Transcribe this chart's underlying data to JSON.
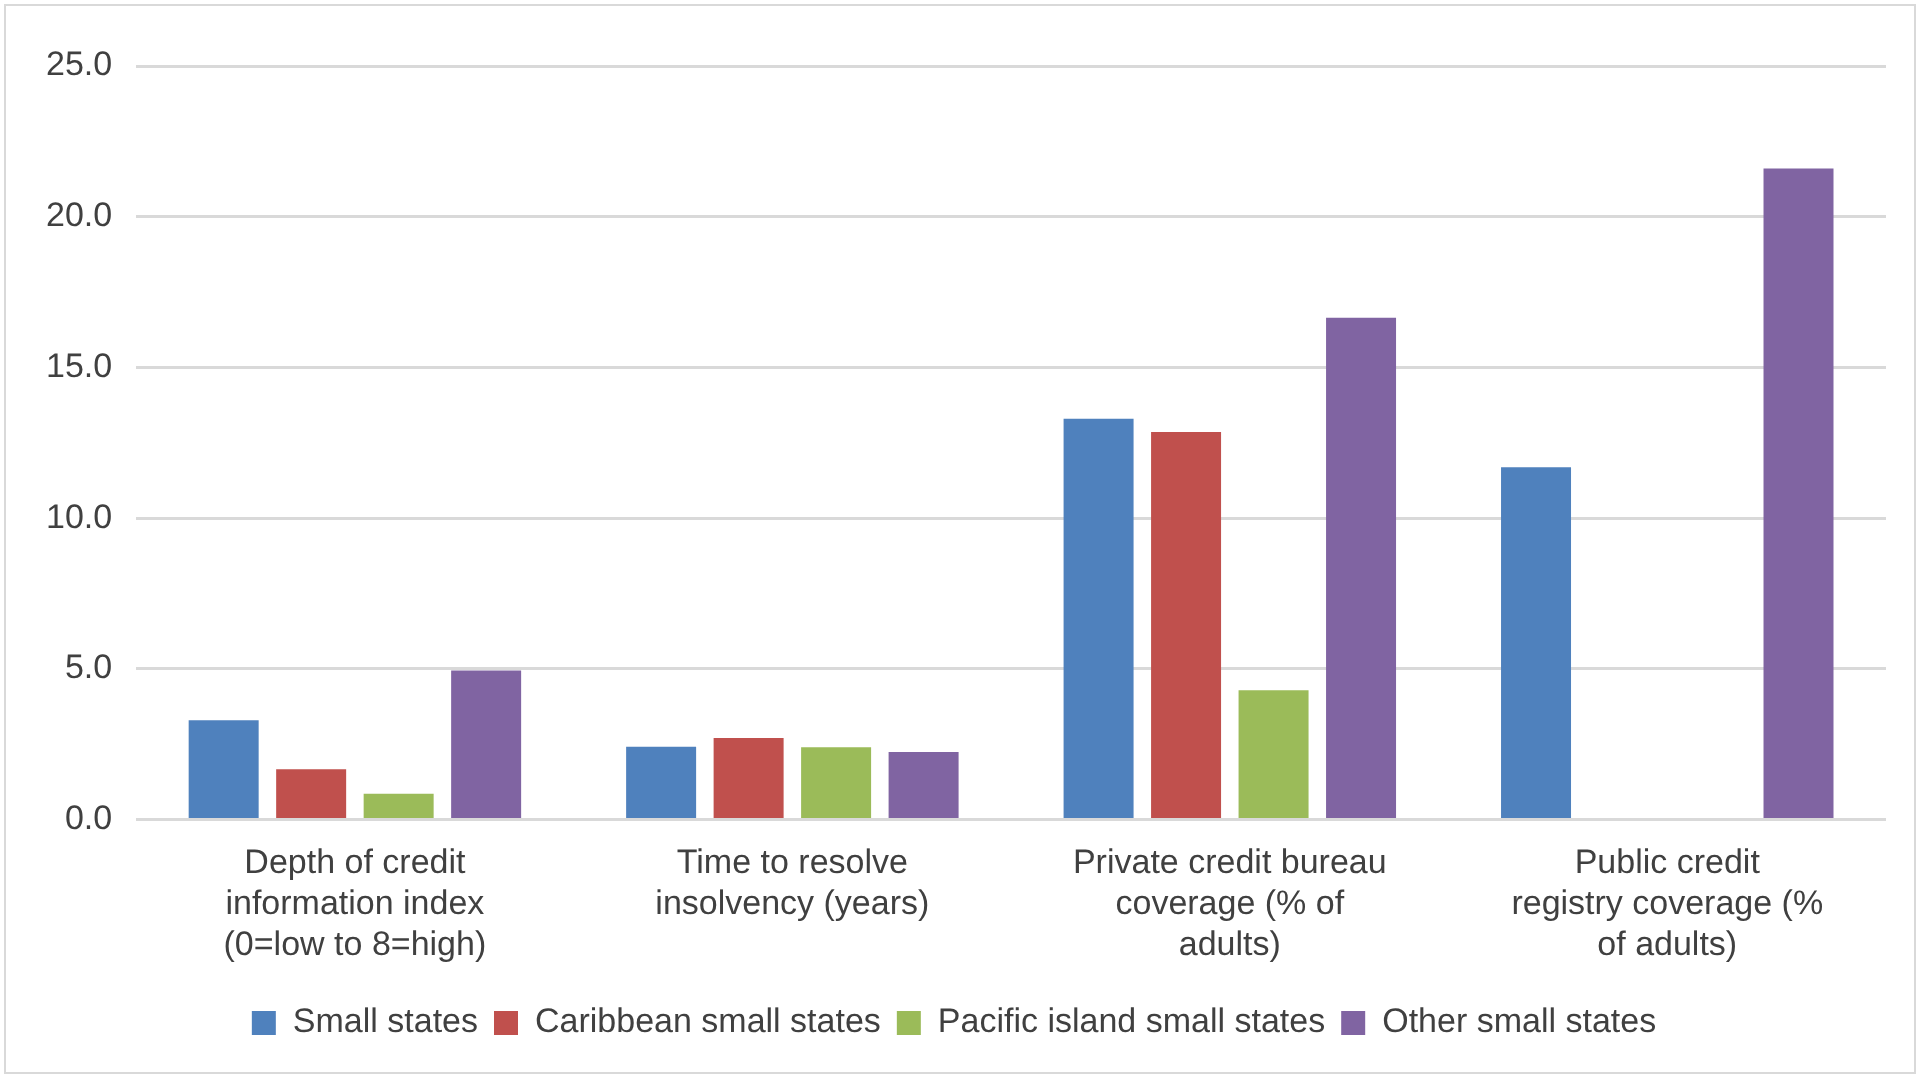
{
  "chart_data": {
    "type": "bar",
    "categories": [
      "Depth of credit information index (0=low to 8=high)",
      "Time to resolve insolvency (years)",
      "Private credit bureau coverage (% of adults)",
      "Public credit registry coverage (% of adults)"
    ],
    "series": [
      {
        "name": "Small states",
        "color": "#4f81bd",
        "values": [
          3.3,
          2.42,
          13.3,
          11.69
        ]
      },
      {
        "name": "Caribbean small states",
        "color": "#c0504d",
        "values": [
          1.67,
          2.71,
          12.86,
          null
        ]
      },
      {
        "name": "Pacific island small states",
        "color": "#9bbb59",
        "values": [
          0.86,
          2.4,
          4.29,
          null
        ]
      },
      {
        "name": "Other small states",
        "color": "#8064a2",
        "values": [
          4.95,
          2.24,
          16.65,
          21.6
        ]
      }
    ],
    "ylim": [
      0,
      25
    ],
    "yticks": [
      {
        "value": 0,
        "label": "0.0"
      },
      {
        "value": 5,
        "label": "5.0"
      },
      {
        "value": 10,
        "label": "10.0"
      },
      {
        "value": 15,
        "label": "15.0"
      },
      {
        "value": 20,
        "label": "20.0"
      },
      {
        "value": 25,
        "label": "25.0"
      }
    ],
    "grid": "y",
    "legend": "bottom"
  }
}
